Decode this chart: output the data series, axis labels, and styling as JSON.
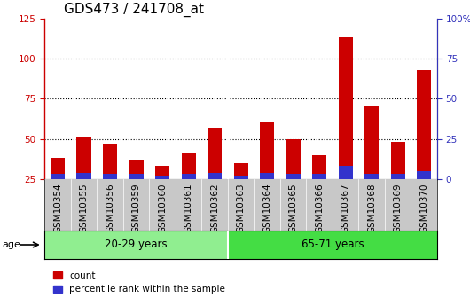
{
  "title": "GDS473 / 241708_at",
  "samples": [
    "GSM10354",
    "GSM10355",
    "GSM10356",
    "GSM10359",
    "GSM10360",
    "GSM10361",
    "GSM10362",
    "GSM10363",
    "GSM10364",
    "GSM10365",
    "GSM10366",
    "GSM10367",
    "GSM10368",
    "GSM10369",
    "GSM10370"
  ],
  "count": [
    38,
    51,
    47,
    37,
    33,
    41,
    57,
    35,
    61,
    50,
    40,
    113,
    70,
    48,
    93
  ],
  "percentile": [
    3,
    4,
    3,
    3,
    2,
    3,
    4,
    2,
    4,
    3,
    3,
    8,
    3,
    3,
    5
  ],
  "groups": [
    {
      "label": "20-29 years",
      "start": 0,
      "end": 7,
      "color": "#90EE90"
    },
    {
      "label": "65-71 years",
      "start": 7,
      "end": 15,
      "color": "#44DD44"
    }
  ],
  "ylim_left": [
    25,
    125
  ],
  "ylim_right": [
    0,
    100
  ],
  "left_ticks": [
    25,
    50,
    75,
    100,
    125
  ],
  "right_ticks": [
    0,
    25,
    50,
    75,
    100
  ],
  "right_tick_labels": [
    "0",
    "25",
    "50",
    "75",
    "100%"
  ],
  "grid_lines_at": [
    50,
    75,
    100
  ],
  "bar_color_red": "#CC0000",
  "bar_color_blue": "#3333CC",
  "bg_color_plot": "#FFFFFF",
  "bg_color_xtick": "#C8C8C8",
  "left_axis_color": "#CC0000",
  "right_axis_color": "#3333BB",
  "title_fontsize": 11,
  "tick_fontsize": 7.5,
  "label_fontsize": 8.5,
  "bar_width": 0.55,
  "baseline": 25,
  "age_label": "age",
  "legend_labels": [
    "count",
    "percentile rank within the sample"
  ]
}
